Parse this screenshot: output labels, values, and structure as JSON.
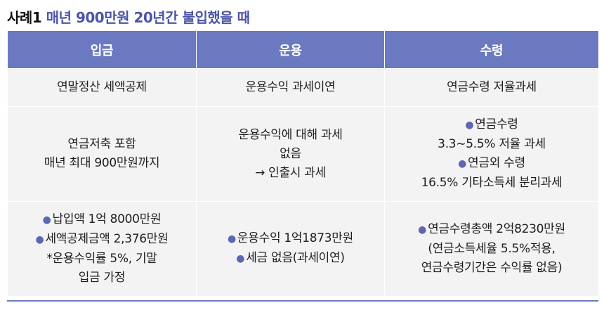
{
  "title": {
    "lead": "사례1",
    "rest": "매년 900만원 20년간 불입했을 때"
  },
  "table": {
    "headers": [
      "입금",
      "운용",
      "수령"
    ],
    "rows": [
      [
        [
          "연말정산 세액공제"
        ],
        [
          "운용수익 과세이연"
        ],
        [
          "연금수령 저율과세"
        ]
      ],
      [
        [
          "연금저축 포함",
          "매년 최대 900만원까지"
        ],
        [
          "운용수익에 대해 과세",
          "없음",
          "→ 인출시 과세"
        ],
        [
          "●연금수령",
          "3.3∼5.5% 저율 과세",
          "●연금외 수령",
          "16.5% 기타소득세 분리과세"
        ]
      ],
      [
        [
          "●납입액 1억 8000만원",
          "●세액공제금액 2,376만원",
          "*운용수익률 5%, 기말",
          "입금 가정"
        ],
        [
          "●운용수익 1억1873만원",
          "●세금 없음(과세이연)"
        ],
        [
          "●연금수령총액 2억8230만원",
          "(연금소득세율 5.5%적용,",
          "연금수령기간은 수익률 없음)"
        ]
      ]
    ]
  },
  "colors": {
    "header_bg": "#6b79c0",
    "title_accent": "#4b55a6",
    "cell_bg": "#f3f3f3",
    "bullet": "#5c66b2"
  }
}
